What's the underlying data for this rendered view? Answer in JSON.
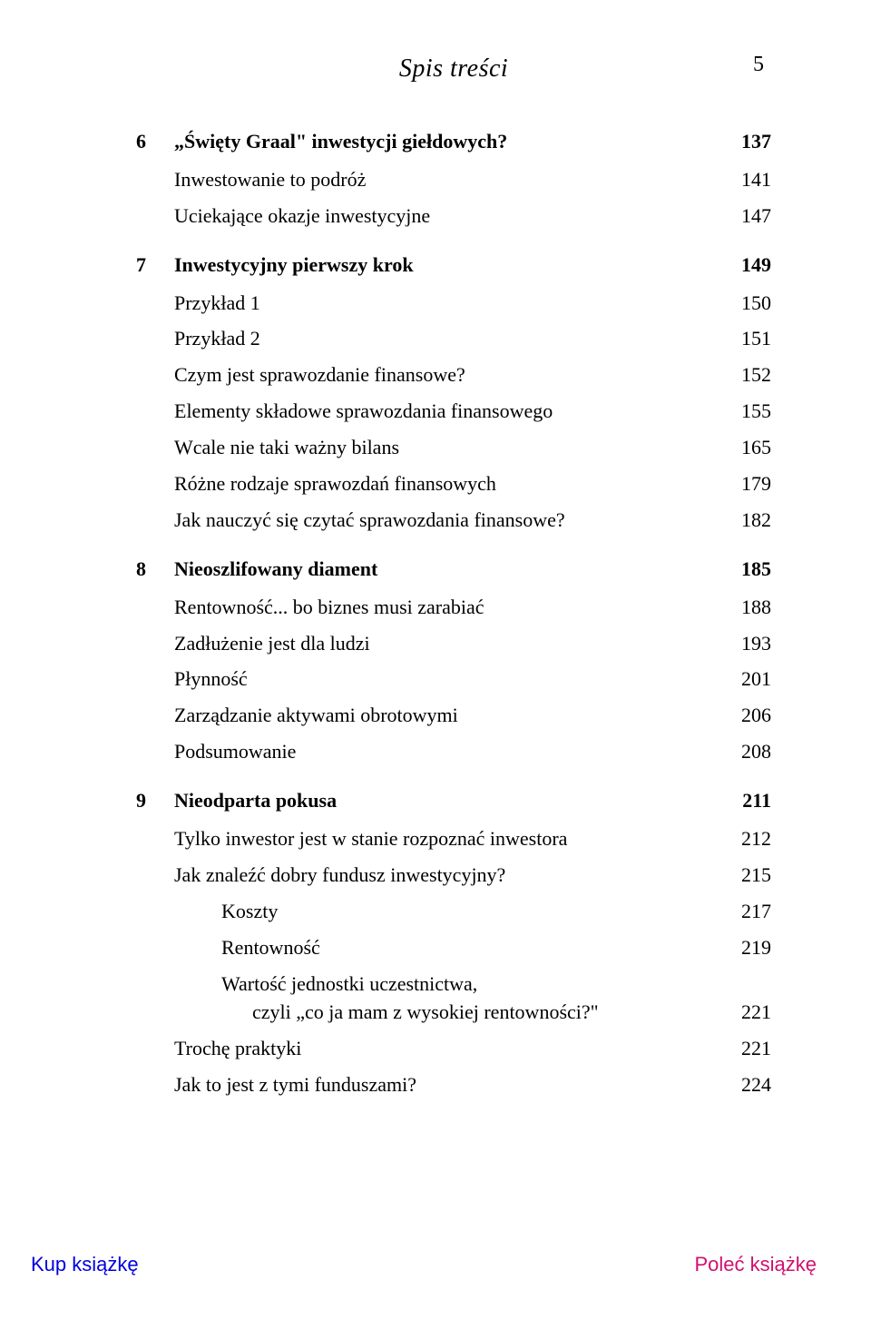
{
  "header": {
    "title": "Spis treści",
    "page_number": "5"
  },
  "toc": [
    {
      "type": "chapter",
      "num": "6",
      "title": "„Święty Graal\" inwestycji giełdowych?",
      "page": "137"
    },
    {
      "type": "lvl0",
      "title": "Inwestowanie to podróż",
      "page": "141"
    },
    {
      "type": "lvl0",
      "title": "Uciekające okazje inwestycyjne",
      "page": "147"
    },
    {
      "type": "chapter",
      "num": "7",
      "title": "Inwestycyjny pierwszy krok",
      "page": "149"
    },
    {
      "type": "lvl0",
      "title": "Przykład 1",
      "page": "150"
    },
    {
      "type": "lvl0",
      "title": "Przykład 2",
      "page": "151"
    },
    {
      "type": "lvl0",
      "title": "Czym jest sprawozdanie finansowe?",
      "page": "152"
    },
    {
      "type": "lvl0",
      "title": "Elementy składowe sprawozdania finansowego",
      "page": "155"
    },
    {
      "type": "lvl0",
      "title": "Wcale nie taki ważny bilans",
      "page": "165"
    },
    {
      "type": "lvl0",
      "title": "Różne rodzaje sprawozdań finansowych",
      "page": "179"
    },
    {
      "type": "lvl0",
      "title": "Jak nauczyć się czytać sprawozdania finansowe?",
      "page": "182"
    },
    {
      "type": "chapter",
      "num": "8",
      "title": "Nieoszlifowany diament",
      "page": "185"
    },
    {
      "type": "lvl0",
      "title": "Rentowność... bo biznes musi zarabiać",
      "page": "188"
    },
    {
      "type": "lvl0",
      "title": "Zadłużenie jest dla ludzi",
      "page": "193"
    },
    {
      "type": "lvl0",
      "title": "Płynność",
      "page": "201"
    },
    {
      "type": "lvl0",
      "title": "Zarządzanie aktywami obrotowymi",
      "page": "206"
    },
    {
      "type": "lvl0",
      "title": "Podsumowanie",
      "page": "208"
    },
    {
      "type": "chapter",
      "num": "9",
      "title": "Nieodparta pokusa",
      "page": "211"
    },
    {
      "type": "lvl0",
      "title": "Tylko inwestor jest w stanie rozpoznać inwestora",
      "page": "212"
    },
    {
      "type": "lvl0",
      "title": "Jak znaleźć dobry fundusz inwestycyjny?",
      "page": "215"
    },
    {
      "type": "lvl1",
      "title": "Koszty",
      "page": "217"
    },
    {
      "type": "lvl1",
      "title": "Rentowność",
      "page": "219"
    },
    {
      "type": "lvl1_multi",
      "title1": "Wartość jednostki uczestnictwa,",
      "title2": "czyli „co ja mam z wysokiej rentowności?\"",
      "page": "221"
    },
    {
      "type": "lvl0",
      "title": "Trochę praktyki",
      "page": "221"
    },
    {
      "type": "lvl0",
      "title": "Jak to jest z tymi funduszami?",
      "page": "224"
    }
  ],
  "footer": {
    "left": "Kup książkę",
    "right": "Poleć książkę"
  },
  "colors": {
    "text": "#000000",
    "link_blue": "#0000e0",
    "link_pink": "#d01070",
    "background": "#ffffff"
  }
}
